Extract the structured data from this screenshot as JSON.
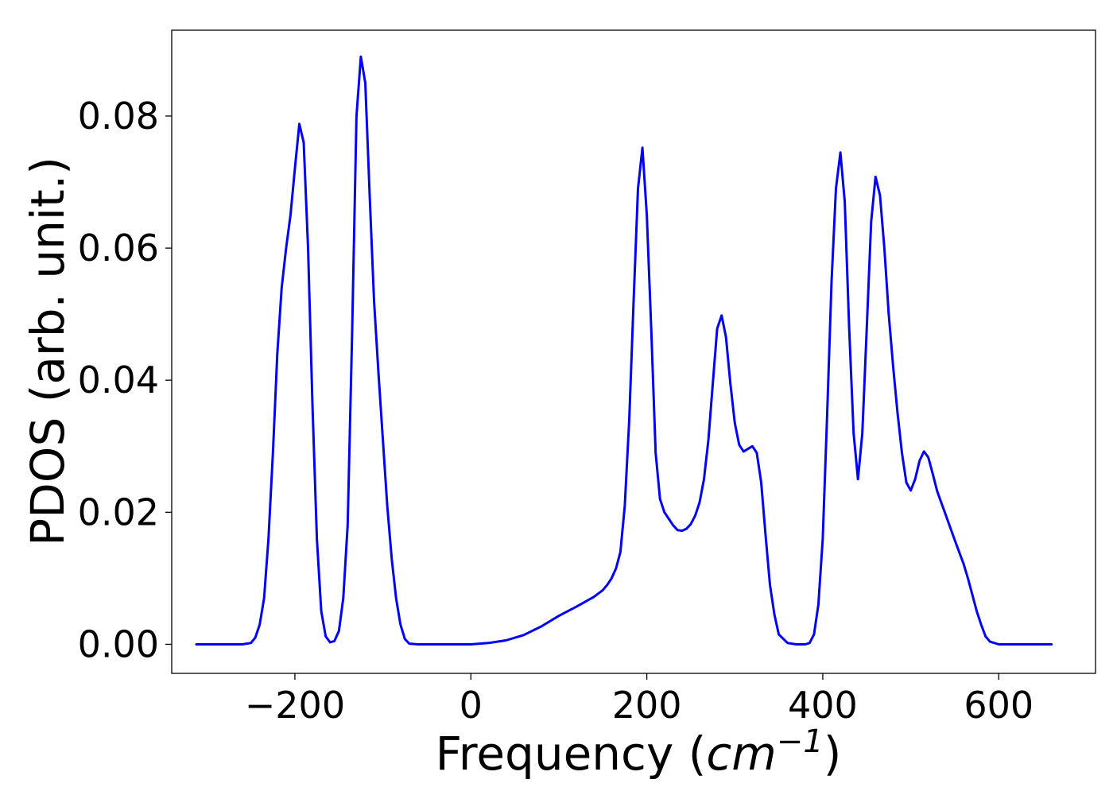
{
  "chart_data": {
    "type": "line",
    "xlabel_main": "Frequency (",
    "xlabel_unit": "cm",
    "xlabel_exp": "−1",
    "xlabel_close": ")",
    "ylabel": "PDOS (arb. unit.)",
    "xlim": [
      -340,
      710
    ],
    "ylim": [
      -0.0044,
      0.093
    ],
    "xticks": [
      -200,
      0,
      200,
      400,
      600
    ],
    "xtick_labels": [
      "−200",
      "0",
      "200",
      "400",
      "600"
    ],
    "yticks": [
      0.0,
      0.02,
      0.04,
      0.06,
      0.08
    ],
    "ytick_labels": [
      "0.00",
      "0.02",
      "0.04",
      "0.06",
      "0.08"
    ],
    "grid": false,
    "series": [
      {
        "color": "#0000ff",
        "x": [
          -312,
          -260,
          -250,
          -245,
          -240,
          -235,
          -230,
          -225,
          -220,
          -215,
          -210,
          -205,
          -200,
          -195,
          -190,
          -185,
          -180,
          -175,
          -170,
          -165,
          -160,
          -155,
          -150,
          -145,
          -140,
          -135,
          -130,
          -125,
          -120,
          -115,
          -110,
          -105,
          -100,
          -95,
          -90,
          -85,
          -80,
          -75,
          -70,
          -60,
          0,
          20,
          40,
          60,
          80,
          100,
          120,
          140,
          150,
          155,
          160,
          165,
          170,
          175,
          180,
          185,
          190,
          195,
          200,
          205,
          210,
          215,
          220,
          225,
          230,
          235,
          240,
          245,
          250,
          255,
          260,
          265,
          270,
          275,
          280,
          285,
          290,
          295,
          300,
          305,
          310,
          315,
          320,
          325,
          330,
          335,
          340,
          345,
          350,
          360,
          370,
          380,
          385,
          390,
          395,
          400,
          405,
          410,
          415,
          420,
          425,
          430,
          435,
          440,
          445,
          450,
          455,
          460,
          465,
          470,
          475,
          480,
          485,
          490,
          495,
          500,
          505,
          510,
          515,
          520,
          525,
          530,
          540,
          550,
          560,
          565,
          570,
          575,
          580,
          585,
          590,
          600,
          620,
          660
        ],
        "y": [
          0.0,
          0.0,
          0.0002,
          0.001,
          0.003,
          0.007,
          0.016,
          0.029,
          0.044,
          0.054,
          0.06,
          0.065,
          0.072,
          0.0788,
          0.076,
          0.06,
          0.036,
          0.016,
          0.005,
          0.0012,
          0.0003,
          0.0005,
          0.002,
          0.007,
          0.018,
          0.047,
          0.08,
          0.089,
          0.085,
          0.068,
          0.052,
          0.041,
          0.031,
          0.021,
          0.013,
          0.007,
          0.003,
          0.0008,
          0.0001,
          0.0,
          0.0,
          0.0002,
          0.0006,
          0.0014,
          0.0027,
          0.0043,
          0.0057,
          0.0072,
          0.0082,
          0.009,
          0.01,
          0.0115,
          0.014,
          0.021,
          0.034,
          0.052,
          0.069,
          0.0752,
          0.065,
          0.048,
          0.029,
          0.022,
          0.02,
          0.019,
          0.018,
          0.0173,
          0.0172,
          0.0175,
          0.0182,
          0.0195,
          0.0215,
          0.025,
          0.031,
          0.0395,
          0.0478,
          0.0498,
          0.0465,
          0.0395,
          0.0335,
          0.0302,
          0.0292,
          0.0296,
          0.03,
          0.029,
          0.0245,
          0.0165,
          0.009,
          0.0045,
          0.0015,
          0.0002,
          0.0,
          0.0,
          0.0002,
          0.0015,
          0.006,
          0.016,
          0.035,
          0.055,
          0.069,
          0.0745,
          0.067,
          0.048,
          0.032,
          0.025,
          0.032,
          0.048,
          0.064,
          0.0708,
          0.068,
          0.06,
          0.05,
          0.042,
          0.035,
          0.029,
          0.0245,
          0.0233,
          0.025,
          0.0278,
          0.0292,
          0.0283,
          0.0258,
          0.0232,
          0.0195,
          0.0158,
          0.0122,
          0.01,
          0.0075,
          0.005,
          0.003,
          0.0012,
          0.0004,
          0.0,
          0.0,
          0.0
        ]
      }
    ]
  }
}
